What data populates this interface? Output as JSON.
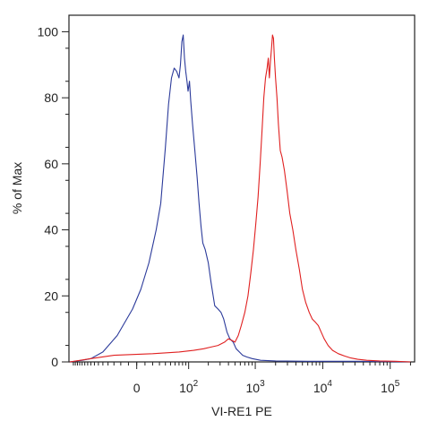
{
  "chart_data": {
    "type": "line",
    "xlabel": "VI-RE1 PE",
    "ylabel": "% of Max",
    "x_scale": "biexponential",
    "x_ticks": [
      {
        "value": 0,
        "base": "0",
        "exp": ""
      },
      {
        "value": 100,
        "base": "10",
        "exp": "2"
      },
      {
        "value": 1000,
        "base": "10",
        "exp": "3"
      },
      {
        "value": 10000,
        "base": "10",
        "exp": "4"
      },
      {
        "value": 100000,
        "base": "10",
        "exp": "5"
      }
    ],
    "y_ticks": [
      "0",
      "20",
      "40",
      "60",
      "80",
      "100"
    ],
    "ylim": [
      0,
      105
    ],
    "grid": false,
    "legend": "none",
    "series": [
      {
        "color": "#2b3a9a",
        "points": [
          [
            -170,
            0
          ],
          [
            -110,
            0.5
          ],
          [
            -80,
            1
          ],
          [
            -50,
            3
          ],
          [
            -25,
            8
          ],
          [
            -5,
            16
          ],
          [
            5,
            22
          ],
          [
            15,
            30
          ],
          [
            25,
            40
          ],
          [
            32,
            48
          ],
          [
            40,
            65
          ],
          [
            46,
            78
          ],
          [
            52,
            86
          ],
          [
            58,
            89
          ],
          [
            64,
            88
          ],
          [
            70,
            86
          ],
          [
            74,
            90
          ],
          [
            78,
            97
          ],
          [
            82,
            99
          ],
          [
            86,
            92
          ],
          [
            90,
            88
          ],
          [
            94,
            85
          ],
          [
            98,
            82
          ],
          [
            103,
            85
          ],
          [
            108,
            79
          ],
          [
            115,
            72
          ],
          [
            125,
            64
          ],
          [
            135,
            56
          ],
          [
            145,
            48
          ],
          [
            155,
            41
          ],
          [
            165,
            36
          ],
          [
            180,
            34
          ],
          [
            200,
            30
          ],
          [
            220,
            24
          ],
          [
            250,
            17
          ],
          [
            280,
            16
          ],
          [
            310,
            15
          ],
          [
            340,
            13
          ],
          [
            380,
            9
          ],
          [
            420,
            7
          ],
          [
            470,
            6
          ],
          [
            520,
            4
          ],
          [
            580,
            3
          ],
          [
            650,
            2
          ],
          [
            750,
            1.5
          ],
          [
            900,
            1
          ],
          [
            1200,
            0.5
          ],
          [
            2000,
            0.3
          ],
          [
            6000,
            0.2
          ],
          [
            30000,
            0.2
          ],
          [
            200000,
            0
          ]
        ]
      },
      {
        "color": "#e02020",
        "points": [
          [
            -170,
            0
          ],
          [
            -80,
            1
          ],
          [
            -30,
            2
          ],
          [
            20,
            2.5
          ],
          [
            70,
            3
          ],
          [
            120,
            3.5
          ],
          [
            170,
            4
          ],
          [
            220,
            4.5
          ],
          [
            280,
            5
          ],
          [
            350,
            6
          ],
          [
            400,
            7
          ],
          [
            450,
            6.5
          ],
          [
            500,
            6
          ],
          [
            560,
            8
          ],
          [
            620,
            11
          ],
          [
            700,
            15
          ],
          [
            780,
            20
          ],
          [
            860,
            27
          ],
          [
            940,
            34
          ],
          [
            1020,
            42
          ],
          [
            1100,
            50
          ],
          [
            1180,
            60
          ],
          [
            1260,
            70
          ],
          [
            1340,
            80
          ],
          [
            1420,
            86
          ],
          [
            1500,
            89
          ],
          [
            1560,
            92
          ],
          [
            1620,
            86
          ],
          [
            1680,
            91
          ],
          [
            1740,
            95
          ],
          [
            1800,
            99
          ],
          [
            1860,
            98
          ],
          [
            1920,
            92
          ],
          [
            2000,
            86
          ],
          [
            2100,
            80
          ],
          [
            2200,
            72
          ],
          [
            2350,
            64
          ],
          [
            2500,
            62
          ],
          [
            2700,
            58
          ],
          [
            2950,
            52
          ],
          [
            3250,
            45
          ],
          [
            3600,
            40
          ],
          [
            4000,
            34
          ],
          [
            4500,
            28
          ],
          [
            5000,
            22
          ],
          [
            5600,
            18
          ],
          [
            6300,
            15
          ],
          [
            7000,
            13
          ],
          [
            7800,
            12
          ],
          [
            8600,
            11
          ],
          [
            9500,
            9
          ],
          [
            10500,
            7
          ],
          [
            12000,
            5
          ],
          [
            14000,
            3.5
          ],
          [
            17000,
            2.5
          ],
          [
            21000,
            1.8
          ],
          [
            26000,
            1.2
          ],
          [
            33000,
            0.8
          ],
          [
            45000,
            0.5
          ],
          [
            70000,
            0.3
          ],
          [
            120000,
            0.2
          ],
          [
            200000,
            0
          ]
        ]
      }
    ]
  }
}
